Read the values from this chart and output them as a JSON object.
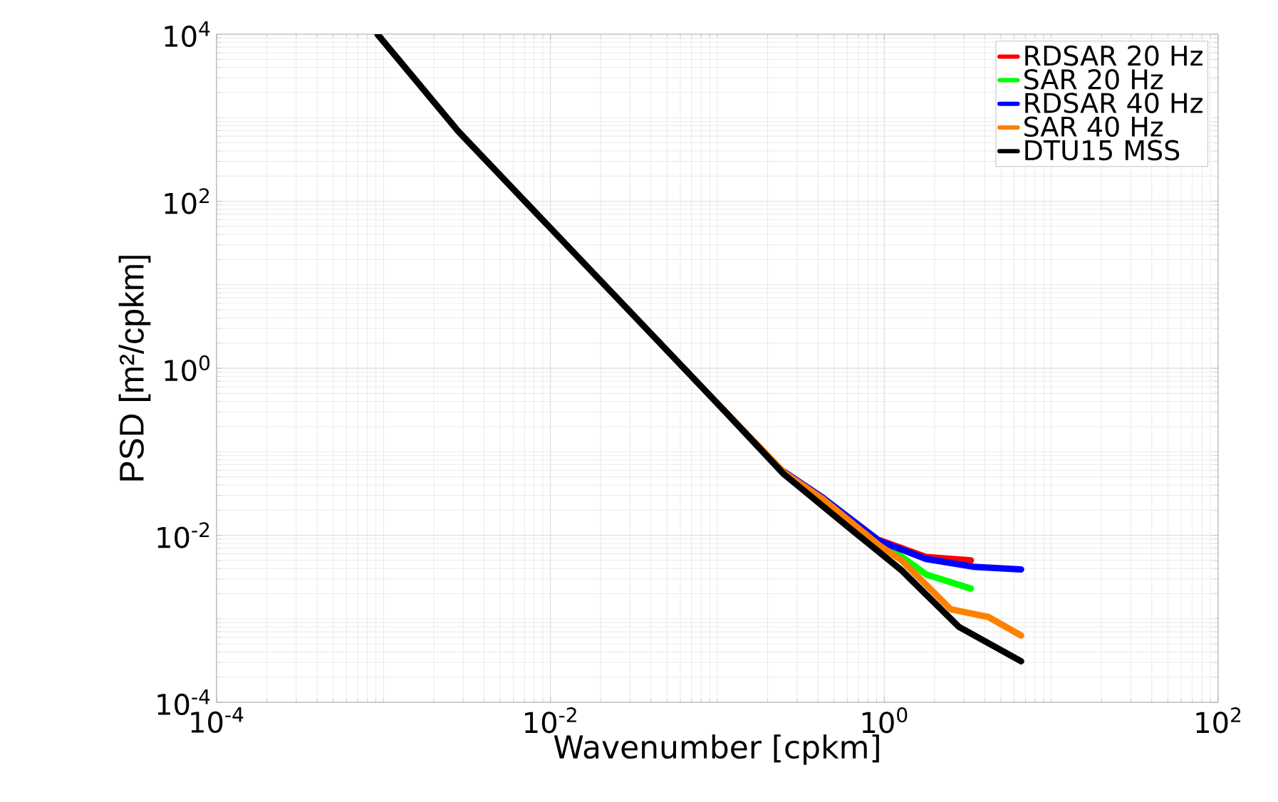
{
  "chart_data": {
    "type": "line",
    "xlabel": "Wavenumber [cpkm]",
    "ylabel": "PSD [m²/cpkm]",
    "log": "xy",
    "grid": true,
    "legend": "top right",
    "line_style": "solid",
    "marker": "none",
    "xlim": [
      0.0001,
      100
    ],
    "ylim": [
      0.0001,
      10000
    ],
    "xticks": [
      {
        "value": 0.0001,
        "label": "10$^{-4}$"
      },
      {
        "value": 0.01,
        "label": "10$^{-2}$"
      },
      {
        "value": 1,
        "label": "10$^{0}$"
      },
      {
        "value": 100,
        "label": "10$^{2}$"
      }
    ],
    "yticks": [
      {
        "value": 0.0001,
        "label": "10$^{-4}$"
      },
      {
        "value": 0.01,
        "label": "10$^{-2}$"
      },
      {
        "value": 1,
        "label": "10$^{0}$"
      },
      {
        "value": 100,
        "label": "10$^{2}$"
      },
      {
        "value": 10000,
        "label": "10$^{4}$"
      }
    ],
    "series": [
      {
        "name": "RDSAR 20 Hz",
        "color": "#ff0000",
        "x": [
          0.94,
          1.78,
          3.3
        ],
        "values": [
          0.0087,
          0.0055,
          0.005
        ]
      },
      {
        "name": "SAR 20 Hz",
        "color": "#00ff00",
        "x": [
          1.1,
          1.78,
          3.3
        ],
        "values": [
          0.0068,
          0.0034,
          0.0023
        ]
      },
      {
        "name": "RDSAR 40 Hz",
        "color": "#0000ff",
        "x": [
          0.25,
          0.43,
          0.94,
          1.78,
          3.4,
          6.6
        ],
        "values": [
          0.058,
          0.028,
          0.0085,
          0.0052,
          0.0042,
          0.0039
        ]
      },
      {
        "name": "SAR 40 Hz",
        "color": "#ff8000",
        "x": [
          0.1,
          0.25,
          0.43,
          0.94,
          1.27,
          2.5,
          4.2,
          6.6
        ],
        "values": [
          0.38,
          0.057,
          0.027,
          0.0075,
          0.005,
          0.0013,
          0.00105,
          0.00063
        ]
      },
      {
        "name": "DTU15 MSS",
        "color": "#000000",
        "x": [
          0.00092,
          0.0028,
          0.1,
          0.25,
          0.66,
          1.27,
          2.8,
          6.6
        ],
        "values": [
          10000,
          690,
          0.38,
          0.054,
          0.011,
          0.0038,
          0.0008,
          0.00031
        ]
      }
    ]
  }
}
